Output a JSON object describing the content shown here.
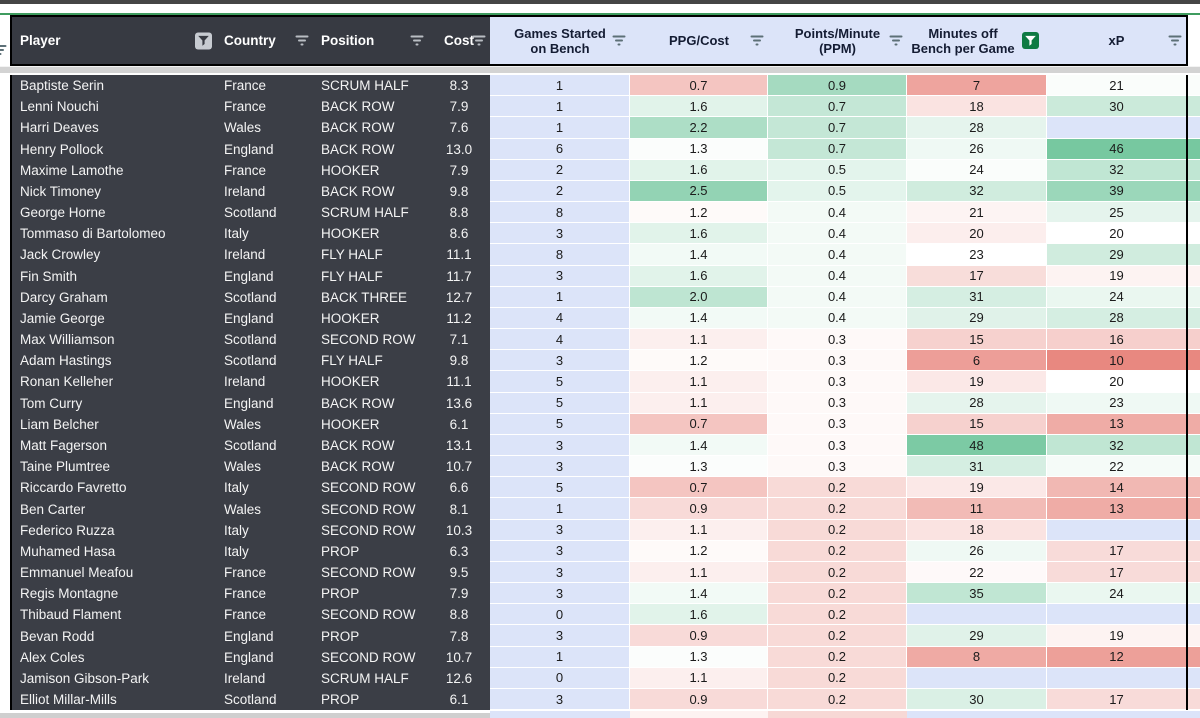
{
  "header": {
    "columns": [
      {
        "label": "Player",
        "icon": "filter-funnel-active"
      },
      {
        "label": "Country",
        "icon": "sort-lines"
      },
      {
        "label": "Position",
        "icon": "sort-lines"
      },
      {
        "label": "Cost",
        "icon": "sort-lines"
      },
      {
        "label": "Games Started on Bench",
        "icon": "sort-lines"
      },
      {
        "label": "PPG/Cost",
        "icon": "sort-lines"
      },
      {
        "label": "Points/Minute (PPM)",
        "icon": "sort-lines"
      },
      {
        "label": "Minutes off Bench per Game",
        "icon": "filter-funnel-active-green"
      },
      {
        "label": "xP",
        "icon": "sort-lines"
      }
    ]
  },
  "colors": {
    "header_dark_bg": "#373a42",
    "header_light_bg": "#dce4f9",
    "row_dark_bg": "#3b3e46",
    "games_col_bg": "#dce4f9",
    "blank_cell_bg": "#dce4f9",
    "scale_red": "#e67c73",
    "scale_white": "#ffffff",
    "scale_green": "#57bb8a",
    "sheet_line_green": "#3f9c5f",
    "filter_badge_green": "#0e7a43",
    "bottom_partial": {
      "left": "#cfcfcf",
      "games": "#dce4f9",
      "ppg": "#fdf2f1",
      "ppm": "#f7d8d5",
      "minutes": "#dce4f9",
      "xp": "#dce4f9",
      "sliver": "#dce4f9"
    }
  },
  "color_scales": {
    "ppg_cost": {
      "min": 0,
      "mid": 1.25,
      "max": 3.2
    },
    "ppm": {
      "min": -0.1,
      "mid": 0.32,
      "max": 1.4
    },
    "minutes_off_bench": {
      "min": 0,
      "mid": 23,
      "max": 55
    },
    "xp": {
      "min": 9,
      "mid": 20,
      "max": 52
    }
  },
  "chart_data": {
    "type": "table",
    "title": "Bench player stats",
    "columns": [
      "Player",
      "Country",
      "Position",
      "Cost",
      "Games Started on Bench",
      "PPG/Cost",
      "Points/Minute (PPM)",
      "Minutes off Bench per Game",
      "xP"
    ]
  },
  "rows": [
    {
      "player": "Baptiste Serin",
      "country": "France",
      "position": "SCRUM HALF",
      "cost": "8.3",
      "games_started": "1",
      "ppg_cost": "0.7",
      "ppm": "0.9",
      "minutes_off_bench": "7",
      "xp": "21"
    },
    {
      "player": "Lenni Nouchi",
      "country": "France",
      "position": "BACK ROW",
      "cost": "7.9",
      "games_started": "1",
      "ppg_cost": "1.6",
      "ppm": "0.7",
      "minutes_off_bench": "18",
      "xp": "30"
    },
    {
      "player": "Harri Deaves",
      "country": "Wales",
      "position": "BACK ROW",
      "cost": "7.6",
      "games_started": "1",
      "ppg_cost": "2.2",
      "ppm": "0.7",
      "minutes_off_bench": "28",
      "xp": ""
    },
    {
      "player": "Henry Pollock",
      "country": "England",
      "position": "BACK ROW",
      "cost": "13.0",
      "games_started": "6",
      "ppg_cost": "1.3",
      "ppm": "0.7",
      "minutes_off_bench": "26",
      "xp": "46"
    },
    {
      "player": "Maxime Lamothe",
      "country": "France",
      "position": "HOOKER",
      "cost": "7.9",
      "games_started": "2",
      "ppg_cost": "1.6",
      "ppm": "0.5",
      "minutes_off_bench": "24",
      "xp": "32"
    },
    {
      "player": "Nick Timoney",
      "country": "Ireland",
      "position": "BACK ROW",
      "cost": "9.8",
      "games_started": "2",
      "ppg_cost": "2.5",
      "ppm": "0.5",
      "minutes_off_bench": "32",
      "xp": "39"
    },
    {
      "player": "George Horne",
      "country": "Scotland",
      "position": "SCRUM HALF",
      "cost": "8.8",
      "games_started": "8",
      "ppg_cost": "1.2",
      "ppm": "0.4",
      "minutes_off_bench": "21",
      "xp": "25"
    },
    {
      "player": "Tommaso di Bartolomeo",
      "country": "Italy",
      "position": "HOOKER",
      "cost": "8.6",
      "games_started": "3",
      "ppg_cost": "1.6",
      "ppm": "0.4",
      "minutes_off_bench": "20",
      "xp": "20"
    },
    {
      "player": "Jack Crowley",
      "country": "Ireland",
      "position": "FLY HALF",
      "cost": "11.1",
      "games_started": "8",
      "ppg_cost": "1.4",
      "ppm": "0.4",
      "minutes_off_bench": "23",
      "xp": "29"
    },
    {
      "player": "Fin Smith",
      "country": "England",
      "position": "FLY HALF",
      "cost": "11.7",
      "games_started": "3",
      "ppg_cost": "1.6",
      "ppm": "0.4",
      "minutes_off_bench": "17",
      "xp": "19"
    },
    {
      "player": "Darcy Graham",
      "country": "Scotland",
      "position": "BACK THREE",
      "cost": "12.7",
      "games_started": "1",
      "ppg_cost": "2.0",
      "ppm": "0.4",
      "minutes_off_bench": "31",
      "xp": "24"
    },
    {
      "player": "Jamie George",
      "country": "England",
      "position": "HOOKER",
      "cost": "11.2",
      "games_started": "4",
      "ppg_cost": "1.4",
      "ppm": "0.4",
      "minutes_off_bench": "29",
      "xp": "28"
    },
    {
      "player": "Max Williamson",
      "country": "Scotland",
      "position": "SECOND ROW",
      "cost": "7.1",
      "games_started": "4",
      "ppg_cost": "1.1",
      "ppm": "0.3",
      "minutes_off_bench": "15",
      "xp": "16"
    },
    {
      "player": "Adam Hastings",
      "country": "Scotland",
      "position": "FLY HALF",
      "cost": "9.8",
      "games_started": "3",
      "ppg_cost": "1.2",
      "ppm": "0.3",
      "minutes_off_bench": "6",
      "xp": "10"
    },
    {
      "player": "Ronan Kelleher",
      "country": "Ireland",
      "position": "HOOKER",
      "cost": "11.1",
      "games_started": "5",
      "ppg_cost": "1.1",
      "ppm": "0.3",
      "minutes_off_bench": "19",
      "xp": "20"
    },
    {
      "player": "Tom Curry",
      "country": "England",
      "position": "BACK ROW",
      "cost": "13.6",
      "games_started": "5",
      "ppg_cost": "1.1",
      "ppm": "0.3",
      "minutes_off_bench": "28",
      "xp": "23"
    },
    {
      "player": "Liam Belcher",
      "country": "Wales",
      "position": "HOOKER",
      "cost": "6.1",
      "games_started": "5",
      "ppg_cost": "0.7",
      "ppm": "0.3",
      "minutes_off_bench": "15",
      "xp": "13"
    },
    {
      "player": "Matt Fagerson",
      "country": "Scotland",
      "position": "BACK ROW",
      "cost": "13.1",
      "games_started": "3",
      "ppg_cost": "1.4",
      "ppm": "0.3",
      "minutes_off_bench": "48",
      "xp": "32"
    },
    {
      "player": "Taine Plumtree",
      "country": "Wales",
      "position": "BACK ROW",
      "cost": "10.7",
      "games_started": "3",
      "ppg_cost": "1.3",
      "ppm": "0.3",
      "minutes_off_bench": "31",
      "xp": "22"
    },
    {
      "player": "Riccardo Favretto",
      "country": "Italy",
      "position": "SECOND ROW",
      "cost": "6.6",
      "games_started": "5",
      "ppg_cost": "0.7",
      "ppm": "0.2",
      "minutes_off_bench": "19",
      "xp": "14"
    },
    {
      "player": "Ben Carter",
      "country": "Wales",
      "position": "SECOND ROW",
      "cost": "8.1",
      "games_started": "1",
      "ppg_cost": "0.9",
      "ppm": "0.2",
      "minutes_off_bench": "11",
      "xp": "13"
    },
    {
      "player": "Federico Ruzza",
      "country": "Italy",
      "position": "SECOND ROW",
      "cost": "10.3",
      "games_started": "3",
      "ppg_cost": "1.1",
      "ppm": "0.2",
      "minutes_off_bench": "18",
      "xp": ""
    },
    {
      "player": "Muhamed Hasa",
      "country": "Italy",
      "position": "PROP",
      "cost": "6.3",
      "games_started": "3",
      "ppg_cost": "1.2",
      "ppm": "0.2",
      "minutes_off_bench": "26",
      "xp": "17"
    },
    {
      "player": "Emmanuel Meafou",
      "country": "France",
      "position": "SECOND ROW",
      "cost": "9.5",
      "games_started": "3",
      "ppg_cost": "1.1",
      "ppm": "0.2",
      "minutes_off_bench": "22",
      "xp": "17"
    },
    {
      "player": "Regis Montagne",
      "country": "France",
      "position": "PROP",
      "cost": "7.9",
      "games_started": "3",
      "ppg_cost": "1.4",
      "ppm": "0.2",
      "minutes_off_bench": "35",
      "xp": "24"
    },
    {
      "player": "Thibaud Flament",
      "country": "France",
      "position": "SECOND ROW",
      "cost": "8.8",
      "games_started": "0",
      "ppg_cost": "1.6",
      "ppm": "0.2",
      "minutes_off_bench": "",
      "xp": ""
    },
    {
      "player": "Bevan Rodd",
      "country": "England",
      "position": "PROP",
      "cost": "7.8",
      "games_started": "3",
      "ppg_cost": "0.9",
      "ppm": "0.2",
      "minutes_off_bench": "29",
      "xp": "19"
    },
    {
      "player": "Alex Coles",
      "country": "England",
      "position": "SECOND ROW",
      "cost": "10.7",
      "games_started": "1",
      "ppg_cost": "1.3",
      "ppm": "0.2",
      "minutes_off_bench": "8",
      "xp": "12"
    },
    {
      "player": "Jamison Gibson-Park",
      "country": "Ireland",
      "position": "SCRUM HALF",
      "cost": "12.6",
      "games_started": "0",
      "ppg_cost": "1.1",
      "ppm": "0.2",
      "minutes_off_bench": "",
      "xp": ""
    },
    {
      "player": "Elliot Millar-Mills",
      "country": "Scotland",
      "position": "PROP",
      "cost": "6.1",
      "games_started": "3",
      "ppg_cost": "0.9",
      "ppm": "0.2",
      "minutes_off_bench": "30",
      "xp": "17"
    }
  ]
}
